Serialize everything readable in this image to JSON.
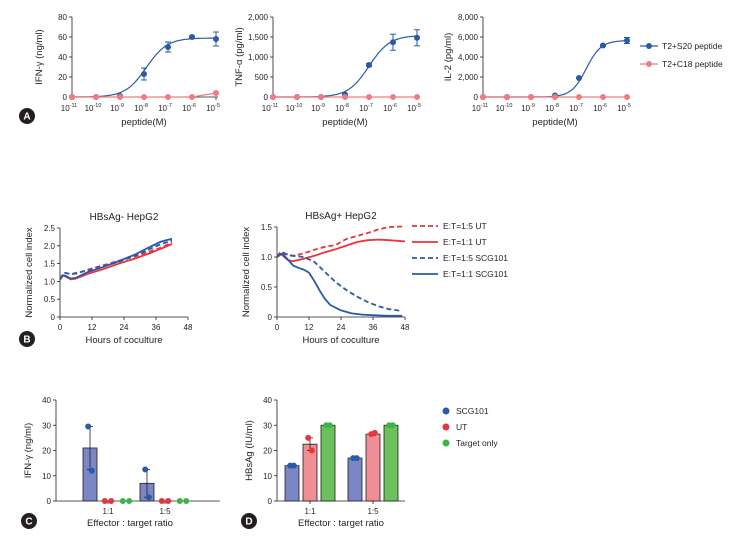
{
  "colors": {
    "blue": "#2a5aa8",
    "red": "#e8343c",
    "red_light": "#f07c80",
    "green": "#3bb54a",
    "bar_blue": "#7b86c7",
    "bar_red": "#f08e95",
    "bar_green": "#6cc05e",
    "axis": "#231f20"
  },
  "panel_labels": [
    "A",
    "B",
    "C",
    "D"
  ],
  "chart_data": [
    {
      "panel": "A",
      "type": "line",
      "xlabel": "peptide(M)",
      "ylabel": "IFN-γ (ng/ml)",
      "x_log": [
        -11,
        -10,
        -9,
        -8,
        -7,
        -6,
        -5
      ],
      "x_tick_labels": [
        "10",
        "10",
        "10",
        "10",
        "10",
        "10",
        "10"
      ],
      "x_tick_exps": [
        "-11",
        "-10",
        "-9",
        "-8",
        "-7",
        "-6",
        "-5"
      ],
      "ylim": [
        0,
        80
      ],
      "y_ticks": [
        0,
        20,
        40,
        60,
        80
      ],
      "y_tick_labels": [
        "0",
        "20",
        "40",
        "60",
        "80"
      ],
      "fit": {
        "bottom": 0,
        "top": 59,
        "logEC50": -7.9,
        "hill": 1.0
      },
      "series": [
        {
          "name": "T2+S20 peptide",
          "color": "blue",
          "values": [
            0,
            0,
            1,
            23,
            50,
            60,
            58
          ],
          "errors": [
            0,
            0,
            0.5,
            6,
            5,
            1,
            7
          ]
        },
        {
          "name": "T2+C18 peptide",
          "color": "red_light",
          "values": [
            0,
            0,
            0,
            0,
            0,
            0,
            4
          ],
          "errors": [
            0,
            0,
            0,
            0,
            0,
            0,
            0
          ]
        }
      ]
    },
    {
      "panel": "A2",
      "type": "line",
      "xlabel": "peptide(M)",
      "ylabel": "TNF-α (pg/ml)",
      "x_log": [
        -11,
        -10,
        -9,
        -8,
        -7,
        -6,
        -5
      ],
      "x_tick_labels": [
        "10",
        "10",
        "10",
        "10",
        "10",
        "10",
        "10"
      ],
      "x_tick_exps": [
        "-11",
        "-10",
        "-9",
        "-8",
        "-7",
        "-6",
        "-5"
      ],
      "ylim": [
        0,
        2000
      ],
      "y_ticks": [
        0,
        500,
        1000,
        1500,
        2000
      ],
      "y_tick_labels": [
        "0",
        "500",
        "1,000",
        "1,500",
        "2,000"
      ],
      "fit": {
        "bottom": 0,
        "top": 1540,
        "logEC50": -7.0,
        "hill": 1.0
      },
      "series": [
        {
          "name": "T2+S20 peptide",
          "color": "blue",
          "values": [
            0,
            0,
            0,
            60,
            800,
            1370,
            1480
          ],
          "errors": [
            0,
            0,
            0,
            20,
            40,
            200,
            200
          ]
        },
        {
          "name": "T2+C18 peptide",
          "color": "red_light",
          "values": [
            0,
            0,
            0,
            0,
            0,
            0,
            0
          ],
          "errors": [
            0,
            0,
            0,
            0,
            0,
            0,
            0
          ]
        }
      ]
    },
    {
      "panel": "A3",
      "type": "line",
      "xlabel": "peptide(M)",
      "ylabel": "IL-2 (pg/ml)",
      "x_log": [
        -11,
        -10,
        -9,
        -8,
        -7,
        -6,
        -5
      ],
      "x_tick_labels": [
        "10",
        "10",
        "10",
        "10",
        "10",
        "10",
        "10"
      ],
      "x_tick_exps": [
        "-11",
        "-10",
        "-9",
        "-8",
        "-7",
        "-6",
        "-5"
      ],
      "ylim": [
        0,
        8000
      ],
      "y_ticks": [
        0,
        2000,
        4000,
        6000,
        8000
      ],
      "y_tick_labels": [
        "0",
        "2,000",
        "4,000",
        "6,000",
        "8,000"
      ],
      "fit": {
        "bottom": 0,
        "top": 5650,
        "logEC50": -6.7,
        "hill": 1.4
      },
      "series": [
        {
          "name": "T2+S20 peptide",
          "color": "blue",
          "values": [
            0,
            0,
            0,
            150,
            1900,
            5150,
            5650
          ],
          "errors": [
            0,
            0,
            0,
            0,
            0,
            100,
            300
          ]
        },
        {
          "name": "T2+C18 peptide",
          "color": "red_light",
          "values": [
            0,
            0,
            0,
            0,
            0,
            0,
            0
          ],
          "errors": [
            0,
            0,
            0,
            0,
            0,
            0,
            0
          ]
        }
      ]
    },
    {
      "panel": "B",
      "type": "line",
      "title": "HBsAg- HepG2",
      "xlabel": "Hours of coculture",
      "ylabel": "Normalized cell index",
      "xlim": [
        0,
        48
      ],
      "x_ticks": [
        0,
        12,
        24,
        36,
        48
      ],
      "ylim": [
        0,
        2.5
      ],
      "y_ticks": [
        0,
        0.5,
        1.0,
        1.5,
        2.0,
        2.5
      ],
      "y_tick_labels": [
        "0",
        "0.5",
        "1.0",
        "1.5",
        "2.0",
        "2.5"
      ],
      "series": [
        {
          "name": "E:T=1:5 UT",
          "color": "red",
          "dash": true,
          "points": [
            [
              0,
              1.05
            ],
            [
              1,
              1.2
            ],
            [
              2,
              1.24
            ],
            [
              4,
              1.2
            ],
            [
              6,
              1.22
            ],
            [
              10,
              1.32
            ],
            [
              16,
              1.45
            ],
            [
              22,
              1.58
            ],
            [
              28,
              1.7
            ],
            [
              34,
              1.85
            ],
            [
              38,
              1.95
            ],
            [
              42,
              2.1
            ]
          ]
        },
        {
          "name": "E:T=1:1 UT",
          "color": "red",
          "dash": false,
          "points": [
            [
              0,
              1.05
            ],
            [
              1,
              1.16
            ],
            [
              2,
              1.14
            ],
            [
              4,
              1.06
            ],
            [
              6,
              1.08
            ],
            [
              10,
              1.2
            ],
            [
              16,
              1.34
            ],
            [
              22,
              1.5
            ],
            [
              28,
              1.64
            ],
            [
              34,
              1.8
            ],
            [
              38,
              1.92
            ],
            [
              42,
              2.05
            ]
          ]
        },
        {
          "name": "E:T=1:5 SCG101",
          "color": "blue",
          "dash": true,
          "points": [
            [
              0,
              1.05
            ],
            [
              1,
              1.2
            ],
            [
              2,
              1.24
            ],
            [
              4,
              1.2
            ],
            [
              6,
              1.24
            ],
            [
              10,
              1.3
            ],
            [
              16,
              1.42
            ],
            [
              22,
              1.55
            ],
            [
              28,
              1.72
            ],
            [
              34,
              1.92
            ],
            [
              38,
              2.05
            ],
            [
              42,
              2.15
            ]
          ]
        },
        {
          "name": "E:T=1:1 SCG101",
          "color": "blue",
          "dash": false,
          "points": [
            [
              0,
              1.05
            ],
            [
              1,
              1.17
            ],
            [
              2,
              1.16
            ],
            [
              4,
              1.08
            ],
            [
              6,
              1.1
            ],
            [
              10,
              1.25
            ],
            [
              16,
              1.4
            ],
            [
              22,
              1.57
            ],
            [
              28,
              1.75
            ],
            [
              34,
              1.98
            ],
            [
              38,
              2.12
            ],
            [
              42,
              2.2
            ]
          ]
        }
      ]
    },
    {
      "panel": "B2",
      "type": "line",
      "title": "HBsAg+ HepG2",
      "xlabel": "Hours of coculture",
      "ylabel": "Normalized cell index",
      "xlim": [
        0,
        48
      ],
      "x_ticks": [
        0,
        12,
        24,
        36,
        48
      ],
      "ylim": [
        0,
        1.5
      ],
      "y_ticks": [
        0,
        0.5,
        1.0,
        1.5
      ],
      "y_tick_labels": [
        "0",
        "0.5",
        "1.0",
        "1.5"
      ],
      "series": [
        {
          "name": "E:T=1:5 UT",
          "color": "red",
          "dash": true,
          "points": [
            [
              0,
              1.0
            ],
            [
              1,
              1.07
            ],
            [
              2,
              1.08
            ],
            [
              4,
              1.03
            ],
            [
              6,
              1.02
            ],
            [
              10,
              1.06
            ],
            [
              14,
              1.12
            ],
            [
              18,
              1.17
            ],
            [
              22,
              1.2
            ],
            [
              26,
              1.3
            ],
            [
              30,
              1.35
            ],
            [
              34,
              1.4
            ],
            [
              38,
              1.46
            ],
            [
              42,
              1.5
            ],
            [
              48,
              1.51
            ]
          ]
        },
        {
          "name": "E:T=1:1 UT",
          "color": "red",
          "dash": false,
          "points": [
            [
              0,
              1.0
            ],
            [
              1,
              1.06
            ],
            [
              2,
              1.03
            ],
            [
              4,
              0.95
            ],
            [
              6,
              0.93
            ],
            [
              10,
              0.97
            ],
            [
              14,
              1.02
            ],
            [
              18,
              1.08
            ],
            [
              22,
              1.13
            ],
            [
              26,
              1.19
            ],
            [
              30,
              1.25
            ],
            [
              34,
              1.28
            ],
            [
              38,
              1.29
            ],
            [
              42,
              1.28
            ],
            [
              48,
              1.26
            ]
          ]
        },
        {
          "name": "E:T=1:5 SCG101",
          "color": "blue",
          "dash": true,
          "points": [
            [
              0,
              1.0
            ],
            [
              2,
              1.08
            ],
            [
              4,
              1.04
            ],
            [
              6,
              1.02
            ],
            [
              10,
              1.0
            ],
            [
              14,
              0.92
            ],
            [
              18,
              0.75
            ],
            [
              22,
              0.58
            ],
            [
              26,
              0.45
            ],
            [
              30,
              0.34
            ],
            [
              34,
              0.25
            ],
            [
              38,
              0.18
            ],
            [
              42,
              0.13
            ],
            [
              47,
              0.1
            ]
          ]
        },
        {
          "name": "E:T=1:1 SCG101",
          "color": "blue",
          "dash": false,
          "points": [
            [
              0,
              1.0
            ],
            [
              2,
              1.06
            ],
            [
              4,
              0.96
            ],
            [
              6,
              0.86
            ],
            [
              8,
              0.82
            ],
            [
              10,
              0.79
            ],
            [
              12,
              0.74
            ],
            [
              14,
              0.6
            ],
            [
              16,
              0.44
            ],
            [
              18,
              0.3
            ],
            [
              20,
              0.2
            ],
            [
              24,
              0.11
            ],
            [
              28,
              0.06
            ],
            [
              32,
              0.04
            ],
            [
              36,
              0.03
            ],
            [
              42,
              0.02
            ],
            [
              47,
              0.02
            ]
          ]
        }
      ],
      "legend": [
        "E:T=1:5 UT",
        "E:T=1:1 UT",
        "E:T=1:5 SCG101",
        "E:T=1:1 SCG101"
      ]
    },
    {
      "panel": "C",
      "type": "bar",
      "xlabel": "Effector : target ratio",
      "ylabel": "IFN-γ (ng/ml)",
      "categories": [
        "1:1",
        "1:5"
      ],
      "ylim": [
        0,
        40
      ],
      "y_ticks": [
        0,
        10,
        20,
        30,
        40
      ],
      "series": [
        {
          "name": "SCG101",
          "color": "blue",
          "bar": "bar_blue",
          "values": [
            21,
            7
          ],
          "points": [
            [
              29.5,
              12
            ],
            [
              12.5,
              1.5
            ]
          ],
          "errors": [
            8.5,
            5.5
          ]
        },
        {
          "name": "UT",
          "color": "red",
          "bar": "bar_red",
          "values": [
            0,
            0
          ],
          "points": [
            [
              0,
              0
            ],
            [
              0,
              0
            ]
          ],
          "errors": [
            0,
            0
          ]
        },
        {
          "name": "Target only",
          "color": "green",
          "bar": "bar_green",
          "values": [
            0,
            0
          ],
          "points": [
            [
              0,
              0
            ],
            [
              0,
              0
            ]
          ],
          "errors": [
            0,
            0
          ]
        }
      ]
    },
    {
      "panel": "D",
      "type": "bar",
      "xlabel": "Effector : target ratio",
      "ylabel": "HBsAg (IU/ml)",
      "categories": [
        "1:1",
        "1:5"
      ],
      "ylim": [
        0,
        40
      ],
      "y_ticks": [
        0,
        10,
        20,
        30,
        40
      ],
      "series": [
        {
          "name": "SCG101",
          "color": "blue",
          "bar": "bar_blue",
          "values": [
            14,
            17
          ],
          "points": [
            [
              14,
              14
            ],
            [
              17,
              17
            ]
          ],
          "errors": [
            0,
            0
          ]
        },
        {
          "name": "UT",
          "color": "red",
          "bar": "bar_red",
          "values": [
            22.5,
            26.5
          ],
          "points": [
            [
              25,
              20
            ],
            [
              26.5,
              27
            ]
          ],
          "errors": [
            2.5,
            0.5
          ]
        },
        {
          "name": "Target only",
          "color": "green",
          "bar": "bar_green",
          "values": [
            30,
            30
          ],
          "points": [
            [
              30,
              30
            ],
            [
              30,
              30
            ]
          ],
          "errors": [
            0,
            0
          ]
        }
      ],
      "legend": [
        "SCG101",
        "UT",
        "Target only"
      ]
    }
  ],
  "legend_A": [
    "T2+S20 peptide",
    "T2+C18 peptide"
  ]
}
